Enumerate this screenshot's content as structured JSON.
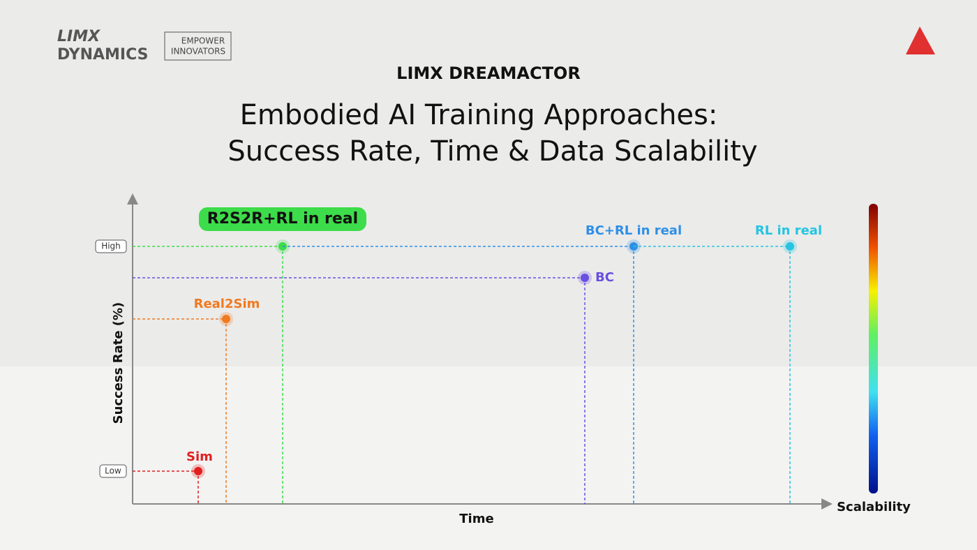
{
  "header": {
    "brand_top": "LIMX",
    "brand_bottom": "DYNAMICS",
    "tagline_top": "EMPOWER",
    "tagline_bottom": "INNOVATORS",
    "product": "LIMX DREAMACTOR"
  },
  "title": {
    "line1": "Embodied AI Training Approaches:",
    "line2": "Success Rate, Time & Data Scalability"
  },
  "axes": {
    "y_label": "Success Rate (%)",
    "x_label": "Time",
    "y_high": "High",
    "y_low": "Low",
    "scale_label": "Scalability"
  },
  "points": [
    {
      "label": "Sim",
      "color": "#e0201e"
    },
    {
      "label": "Real2Sim",
      "color": "#f07a20"
    },
    {
      "label": "R2S2R+RL in real",
      "color": "#3ddc4a"
    },
    {
      "label": "BC",
      "color": "#6a4fe0"
    },
    {
      "label": "BC+RL in real",
      "color": "#2f8fe6"
    },
    {
      "label": "RL in real",
      "color": "#25c4e0"
    }
  ]
}
